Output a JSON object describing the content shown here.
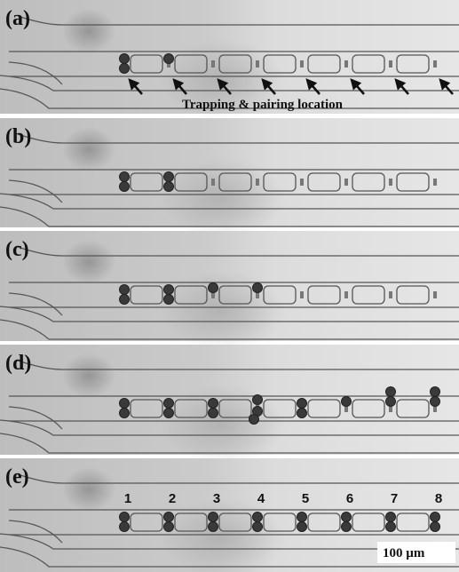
{
  "panels": [
    {
      "label": "(a)",
      "caption": "Trapping & pairing location"
    },
    {
      "label": "(b)"
    },
    {
      "label": "(c)"
    },
    {
      "label": "(d)"
    },
    {
      "label": "(e)",
      "trap_numbers": [
        "1",
        "2",
        "3",
        "4",
        "5",
        "6",
        "7",
        "8"
      ],
      "scale_bar": "100 µm"
    }
  ]
}
